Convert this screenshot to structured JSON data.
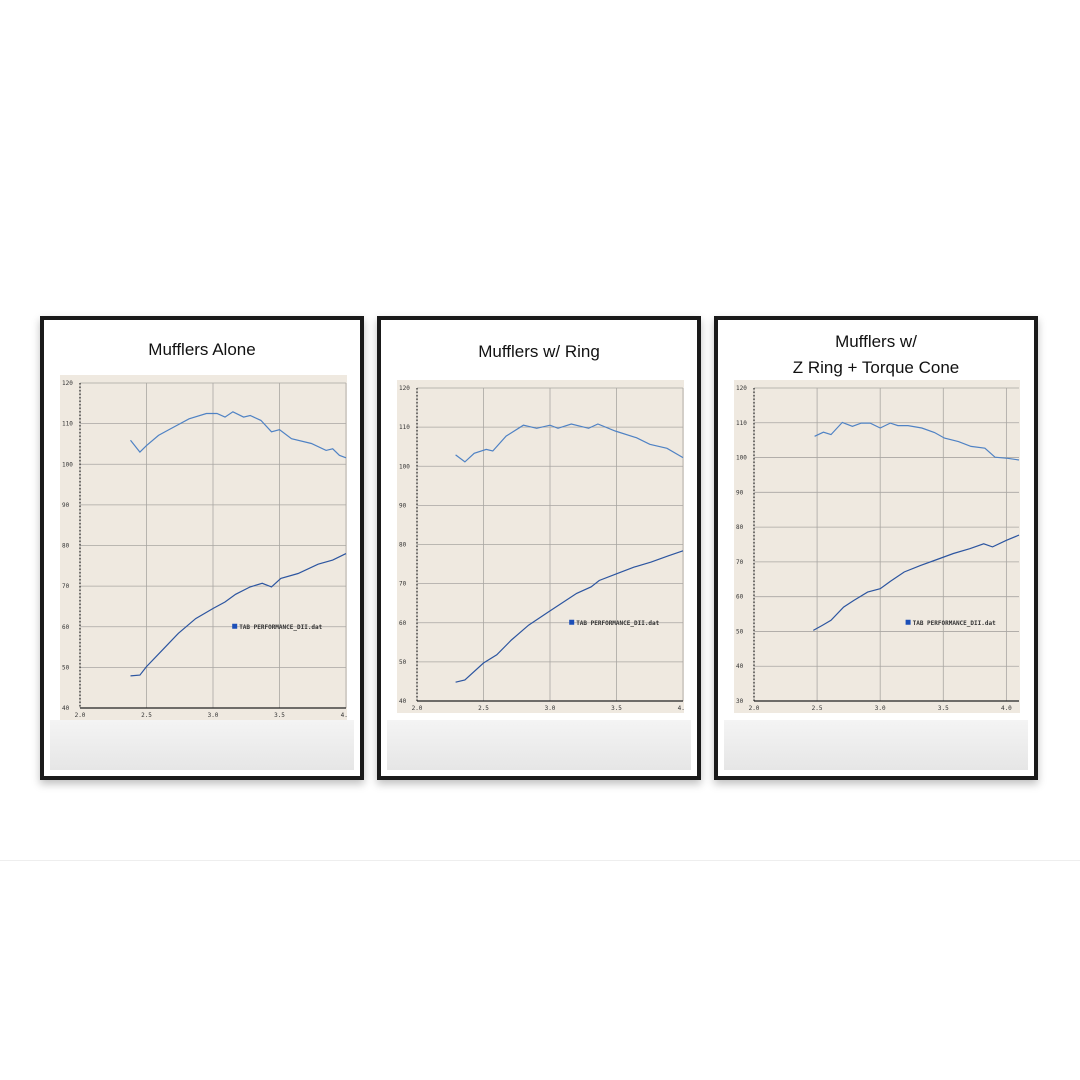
{
  "colors": {
    "frame": "#1a1a1a",
    "paper": "#efe9e0",
    "grid": "#a9a6a2",
    "upper_line": "#4f82c4",
    "lower_line": "#2c55a0",
    "legend_swatch": "#1c4fb8"
  },
  "chart_data": [
    {
      "type": "line",
      "title": "Mufflers Alone",
      "xlim": [
        2.0,
        4.0
      ],
      "ylim": [
        40,
        120
      ],
      "xticks": [
        "2.0",
        "2.5",
        "3.0",
        "3.5",
        "4.0"
      ],
      "yticks": [
        "120",
        "110",
        "100",
        "90",
        "80",
        "70",
        "60",
        "50",
        "40"
      ],
      "grid": true,
      "legend": "TAB PERFORMANCE_DII.dat",
      "legend_position": "right-middle",
      "series": [
        {
          "x": [
            2.38,
            2.45,
            2.5,
            2.59,
            2.68,
            2.82,
            2.95,
            3.03,
            3.09,
            3.15,
            3.23,
            3.28,
            3.36,
            3.44,
            3.5,
            3.59,
            3.74,
            3.85,
            3.9,
            3.95,
            4.0
          ],
          "y": [
            105.9,
            103.0,
            104.6,
            107.1,
            108.7,
            111.2,
            112.5,
            112.5,
            111.6,
            112.9,
            111.6,
            112.0,
            110.8,
            108.0,
            108.5,
            106.3,
            105.1,
            103.4,
            103.8,
            102.2,
            101.6
          ]
        },
        {
          "x": [
            2.38,
            2.45,
            2.5,
            2.62,
            2.74,
            2.87,
            3.0,
            3.09,
            3.17,
            3.28,
            3.37,
            3.44,
            3.51,
            3.64,
            3.79,
            3.9,
            4.0
          ],
          "y": [
            47.9,
            48.1,
            50.2,
            54.3,
            58.4,
            62.0,
            64.5,
            66.1,
            68.0,
            69.8,
            70.7,
            69.8,
            71.9,
            73.1,
            75.4,
            76.4,
            78.0
          ]
        }
      ]
    },
    {
      "type": "line",
      "title": "Mufflers w/ Ring",
      "xlim": [
        2.0,
        4.0
      ],
      "ylim": [
        40,
        120
      ],
      "xticks": [
        "2.0",
        "2.5",
        "3.0",
        "3.5",
        "4.0"
      ],
      "yticks": [
        "120",
        "110",
        "100",
        "90",
        "80",
        "70",
        "60",
        "50",
        "40"
      ],
      "grid": true,
      "legend": "TAB PERFORMANCE_DII.dat",
      "legend_position": "right-middle",
      "series": [
        {
          "x": [
            2.29,
            2.36,
            2.43,
            2.52,
            2.57,
            2.67,
            2.8,
            2.9,
            3.0,
            3.06,
            3.16,
            3.29,
            3.36,
            3.49,
            3.65,
            3.75,
            3.88,
            4.0
          ],
          "y": [
            102.9,
            101.1,
            103.3,
            104.3,
            103.9,
            107.7,
            110.5,
            109.7,
            110.5,
            109.7,
            110.8,
            109.7,
            110.8,
            109.0,
            107.3,
            105.6,
            104.6,
            102.2
          ]
        },
        {
          "x": [
            2.29,
            2.36,
            2.5,
            2.6,
            2.71,
            2.84,
            2.99,
            3.2,
            3.31,
            3.37,
            3.5,
            3.63,
            3.76,
            3.89,
            4.0
          ],
          "y": [
            44.8,
            45.4,
            49.7,
            51.8,
            55.6,
            59.4,
            62.8,
            67.5,
            69.2,
            70.8,
            72.5,
            74.2,
            75.5,
            77.1,
            78.4
          ]
        }
      ]
    },
    {
      "type": "line",
      "title": "Mufflers w/ Z Ring + Torque Cone",
      "title_lines": [
        "Mufflers w/",
        "Z Ring + Torque Cone"
      ],
      "xlim": [
        2.0,
        4.1
      ],
      "ylim": [
        30,
        120
      ],
      "xticks": [
        "2.0",
        "2.5",
        "3.0",
        "3.5",
        "4.0"
      ],
      "yticks": [
        "120",
        "110",
        "100",
        "90",
        "80",
        "70",
        "60",
        "50",
        "40",
        "30"
      ],
      "grid": true,
      "legend": "TAB PERFORMANCE_DII.dat",
      "legend_position": "right-middle",
      "series": [
        {
          "x": [
            2.48,
            2.55,
            2.61,
            2.7,
            2.78,
            2.85,
            2.92,
            3.0,
            3.08,
            3.14,
            3.22,
            3.33,
            3.43,
            3.51,
            3.62,
            3.72,
            3.83,
            3.91,
            4.01,
            4.1
          ],
          "y": [
            106.1,
            107.3,
            106.6,
            110.1,
            109.0,
            109.9,
            109.9,
            108.5,
            109.9,
            109.2,
            109.2,
            108.5,
            107.2,
            105.6,
            104.6,
            103.2,
            102.7,
            100.1,
            99.8,
            99.3
          ]
        },
        {
          "x": [
            2.47,
            2.54,
            2.61,
            2.71,
            2.79,
            2.9,
            3.0,
            3.08,
            3.19,
            3.32,
            3.45,
            3.58,
            3.71,
            3.82,
            3.89,
            4.0,
            4.1
          ],
          "y": [
            50.3,
            51.7,
            53.2,
            57.0,
            58.9,
            61.3,
            62.3,
            64.4,
            67.1,
            69.0,
            70.7,
            72.4,
            73.8,
            75.2,
            74.3,
            76.2,
            77.7
          ]
        }
      ]
    }
  ]
}
